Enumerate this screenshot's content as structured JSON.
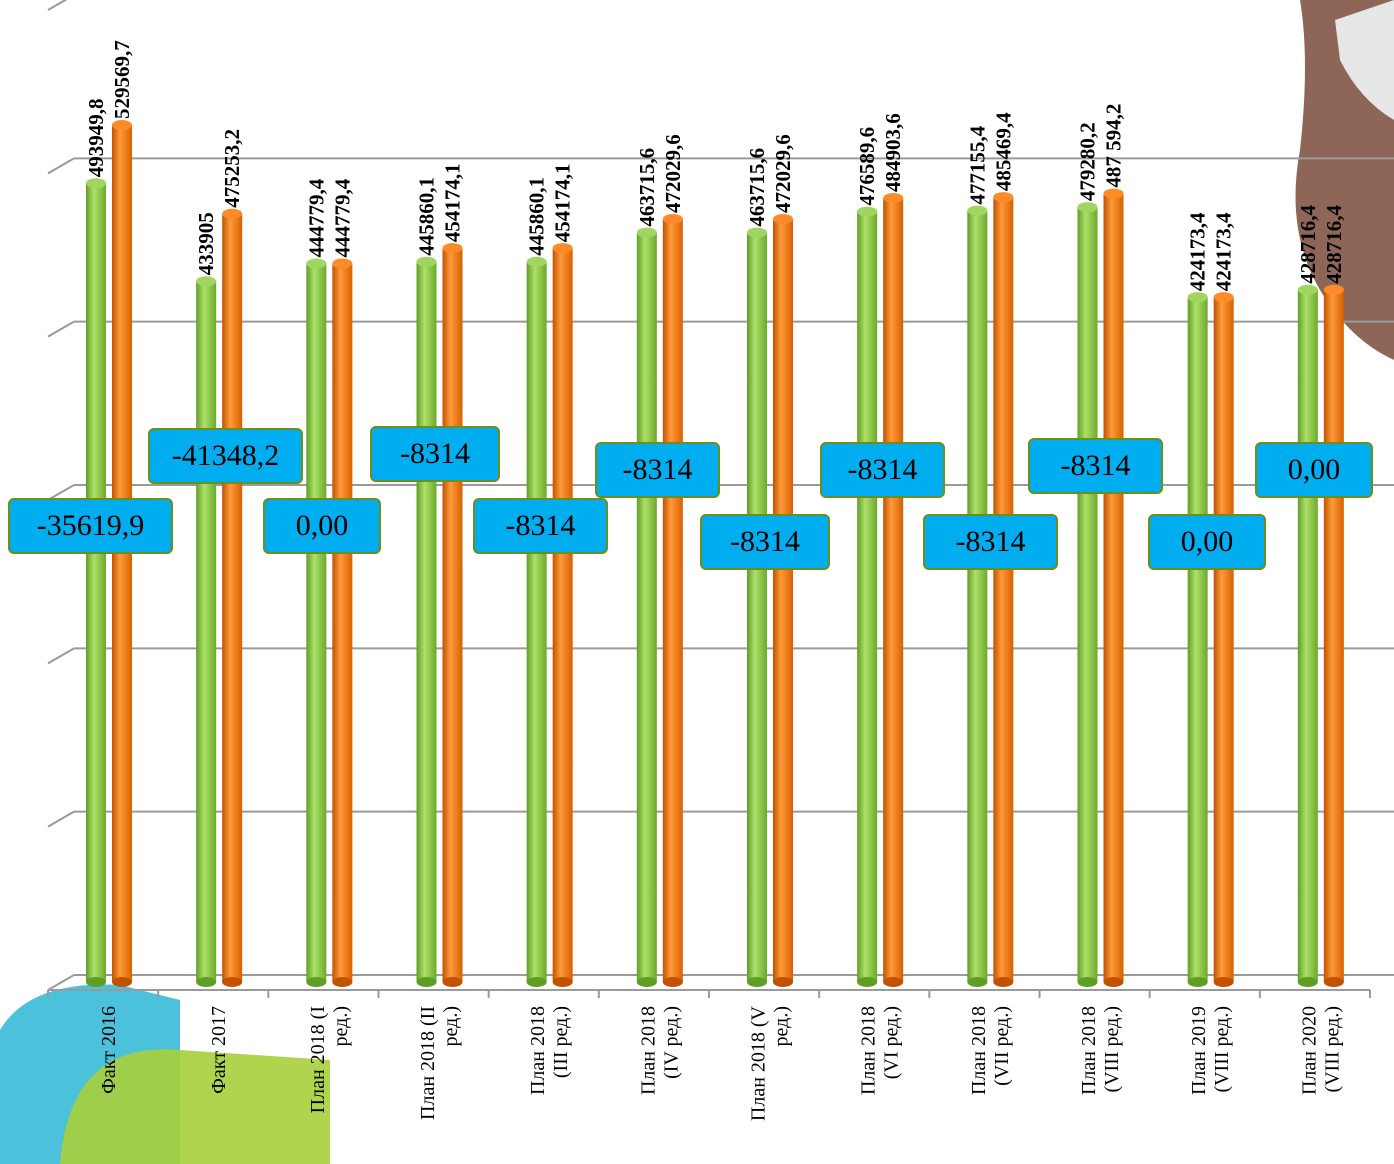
{
  "chart_data": {
    "type": "bar",
    "categories": [
      "Факт 2016",
      "Факт 2017",
      "План 2018 (I ред.)",
      "План 2018 (II ред.)",
      "План 2018 (III ред.)",
      "План 2018 (IV ред.)",
      "План 2018 (V ред.)",
      "План 2018 (VI ред.)",
      "План 2018 (VII ред.)",
      "План 2018 (VIII ред.)",
      "План 2019 (VIII ред.)",
      "План 2020 (VIII ред.)"
    ],
    "category_lines": [
      [
        "Факт 2016"
      ],
      [
        "Факт 2017"
      ],
      [
        "План 2018 (I",
        "ред.)"
      ],
      [
        "План 2018 (II",
        "ред.)"
      ],
      [
        "План 2018",
        "(III ред.)"
      ],
      [
        "План 2018",
        "(IV ред.)"
      ],
      [
        "План 2018 (V",
        "ред.)"
      ],
      [
        "План 2018",
        "(VI ред.)"
      ],
      [
        "План 2018",
        "(VII ред.)"
      ],
      [
        "План 2018",
        "(VIII ред.)"
      ],
      [
        "План 2019",
        "(VIII ред.)"
      ],
      [
        "План 2020",
        "(VIII ред.)"
      ]
    ],
    "series": [
      {
        "color": "#7cc142",
        "values": [
          493949.8,
          433905,
          444779.4,
          445860.1,
          445860.1,
          463715.6,
          463715.6,
          476589.6,
          477155.4,
          479280.2,
          424173.4,
          428716.4
        ],
        "labels": [
          "493949,8",
          "433905",
          "444779,4",
          "445860,1",
          "445860,1",
          "463715,6",
          "463715,6",
          "476589,6",
          "477155,4",
          "479280,2",
          "424173,4",
          "428716,4"
        ]
      },
      {
        "color": "#f06a00",
        "values": [
          529569.7,
          475253.2,
          444779.4,
          454174.1,
          454174.1,
          472029.6,
          472029.6,
          484903.6,
          485469.4,
          487594.2,
          424173.4,
          428716.4
        ],
        "labels": [
          "529569,7",
          "475253,2",
          "444779,4",
          "454174,1",
          "454174,1",
          "472029,6",
          "472029,6",
          "484903,6",
          "485469,4",
          "487 594,2",
          "424173,4",
          "428716,4"
        ]
      }
    ],
    "differences": [
      "-35619,9",
      "-41348,2",
      "0,00",
      "-8314",
      "-8314",
      "-8314",
      "-8314",
      "-8314",
      "-8314",
      "-8314",
      "0,00",
      "0,00"
    ],
    "ylim": [
      0,
      600000
    ],
    "grid": true,
    "legend": "none"
  }
}
